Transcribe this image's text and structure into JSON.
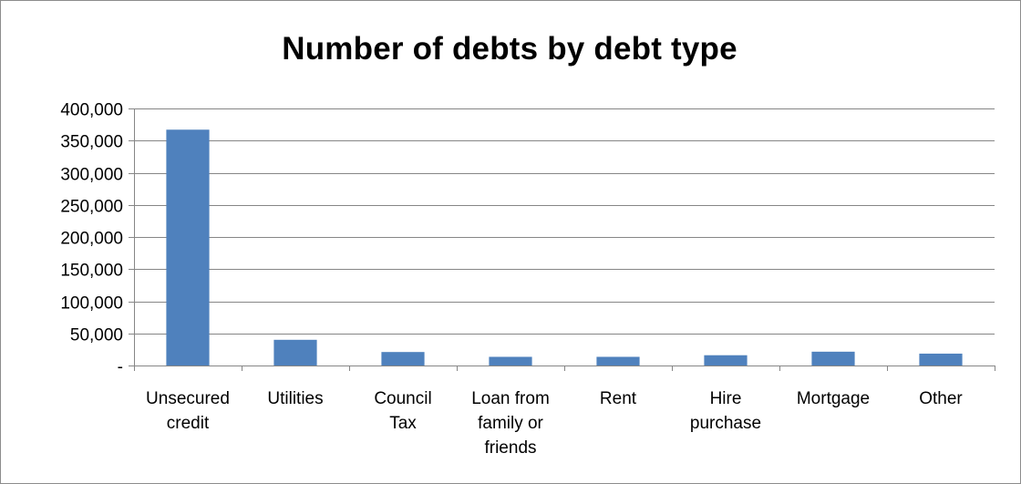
{
  "chart_data": {
    "type": "bar",
    "title": "Number of debts by debt type",
    "xlabel": "",
    "ylabel": "",
    "categories": [
      [
        "Unsecured",
        "credit"
      ],
      [
        "Utilities"
      ],
      [
        "Council",
        "Tax"
      ],
      [
        "Loan from",
        "family or",
        "friends"
      ],
      [
        "Rent"
      ],
      [
        "Hire",
        "purchase"
      ],
      [
        "Mortgage"
      ],
      [
        "Other"
      ]
    ],
    "values": [
      367000,
      40000,
      21000,
      13500,
      13500,
      16000,
      21500,
      18500
    ],
    "ylim": [
      0,
      400000
    ],
    "yticks": [
      0,
      50000,
      100000,
      150000,
      200000,
      250000,
      300000,
      350000,
      400000
    ],
    "ytick_labels": [
      "-",
      "50,000",
      "100,000",
      "150,000",
      "200,000",
      "250,000",
      "300,000",
      "350,000",
      "400,000"
    ],
    "grid": true,
    "legend": "none",
    "colors": {
      "bar": "#4f81bd",
      "grid": "#868686",
      "axis": "#868686"
    }
  }
}
